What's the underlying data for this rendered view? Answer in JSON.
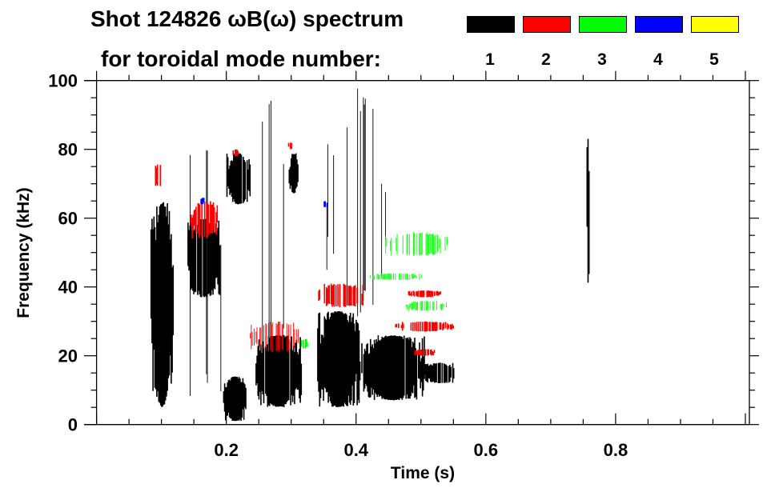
{
  "chart_data": {
    "type": "heatmap",
    "title_line1": "Shot 124826 ωB(ω) spectrum",
    "title_line2": "for toroidal mode number:",
    "xlabel": "Time (s)",
    "ylabel": "Frequency (kHz)",
    "xlim": [
      0,
      1.0
    ],
    "ylim": [
      0,
      100
    ],
    "x_ticks": [
      0.2,
      0.4,
      0.6,
      0.8
    ],
    "x_tick_labels": [
      "0.2",
      "0.4",
      "0.6",
      "0.8"
    ],
    "y_ticks": [
      0,
      20,
      40,
      60,
      80,
      100
    ],
    "y_tick_labels": [
      "0",
      "20",
      "40",
      "60",
      "80",
      "100"
    ],
    "legend": [
      {
        "label": "1",
        "color": "#000000"
      },
      {
        "label": "2",
        "color": "#ff0000"
      },
      {
        "label": "3",
        "color": "#00ff00"
      },
      {
        "label": "4",
        "color": "#0000ff"
      },
      {
        "label": "5",
        "color": "#ffff00"
      }
    ],
    "features": [
      {
        "mode": 1,
        "t": [
          0.083,
          0.118
        ],
        "f": [
          5,
          65
        ],
        "density": 0.9
      },
      {
        "mode": 1,
        "t": [
          0.09,
          0.105
        ],
        "f": [
          30,
          42
        ],
        "density": 1.0
      },
      {
        "mode": 1,
        "t": [
          0.12,
          0.2
        ],
        "f": [
          2,
          85
        ],
        "density": 0.15
      },
      {
        "mode": 1,
        "t": [
          0.14,
          0.19
        ],
        "f": [
          37,
          60
        ],
        "density": 0.9
      },
      {
        "mode": 1,
        "t": [
          0.195,
          0.23
        ],
        "f": [
          1,
          14
        ],
        "density": 0.95
      },
      {
        "mode": 1,
        "t": [
          0.2,
          0.236
        ],
        "f": [
          64,
          79
        ],
        "density": 0.9
      },
      {
        "mode": 1,
        "t": [
          0.245,
          0.315
        ],
        "f": [
          5,
          26
        ],
        "density": 0.9
      },
      {
        "mode": 1,
        "t": [
          0.255,
          0.29
        ],
        "f": [
          5,
          97
        ],
        "density": 0.18
      },
      {
        "mode": 1,
        "t": [
          0.296,
          0.31
        ],
        "f": [
          67,
          79
        ],
        "density": 0.8
      },
      {
        "mode": 1,
        "t": [
          0.34,
          0.405
        ],
        "f": [
          5,
          33
        ],
        "density": 0.95
      },
      {
        "mode": 1,
        "t": [
          0.35,
          0.45
        ],
        "f": [
          30,
          98
        ],
        "density": 0.08
      },
      {
        "mode": 1,
        "t": [
          0.405,
          0.505
        ],
        "f": [
          7,
          26
        ],
        "density": 0.92
      },
      {
        "mode": 1,
        "t": [
          0.505,
          0.55
        ],
        "f": [
          12,
          18
        ],
        "density": 0.85
      },
      {
        "mode": 1,
        "t": [
          0.755,
          0.758
        ],
        "f": [
          40,
          85
        ],
        "density": 0.6
      },
      {
        "mode": 2,
        "t": [
          0.09,
          0.1
        ],
        "f": [
          69,
          76
        ],
        "density": 0.7
      },
      {
        "mode": 2,
        "t": [
          0.145,
          0.185
        ],
        "f": [
          54,
          65
        ],
        "density": 0.6
      },
      {
        "mode": 2,
        "t": [
          0.208,
          0.218
        ],
        "f": [
          78,
          80
        ],
        "density": 0.8
      },
      {
        "mode": 2,
        "t": [
          0.235,
          0.32
        ],
        "f": [
          21,
          30
        ],
        "density": 0.4
      },
      {
        "mode": 2,
        "t": [
          0.34,
          0.41
        ],
        "f": [
          34,
          41
        ],
        "density": 0.6
      },
      {
        "mode": 2,
        "t": [
          0.48,
          0.53
        ],
        "f": [
          37,
          39
        ],
        "density": 0.8
      },
      {
        "mode": 2,
        "t": [
          0.46,
          0.55
        ],
        "f": [
          27,
          30
        ],
        "density": 0.6
      },
      {
        "mode": 2,
        "t": [
          0.49,
          0.52
        ],
        "f": [
          20,
          22
        ],
        "density": 0.6
      },
      {
        "mode": 2,
        "t": [
          0.295,
          0.302
        ],
        "f": [
          80,
          82
        ],
        "density": 0.8
      },
      {
        "mode": 3,
        "t": [
          0.445,
          0.54
        ],
        "f": [
          49,
          56
        ],
        "density": 0.5
      },
      {
        "mode": 3,
        "t": [
          0.42,
          0.5
        ],
        "f": [
          42,
          44
        ],
        "density": 0.5
      },
      {
        "mode": 3,
        "t": [
          0.475,
          0.54
        ],
        "f": [
          33,
          36
        ],
        "density": 0.5
      },
      {
        "mode": 3,
        "t": [
          0.315,
          0.325
        ],
        "f": [
          22,
          25
        ],
        "density": 0.6
      },
      {
        "mode": 4,
        "t": [
          0.16,
          0.165
        ],
        "f": [
          64,
          66
        ],
        "density": 0.8
      },
      {
        "mode": 4,
        "t": [
          0.35,
          0.355
        ],
        "f": [
          63,
          65
        ],
        "density": 0.8
      }
    ]
  }
}
